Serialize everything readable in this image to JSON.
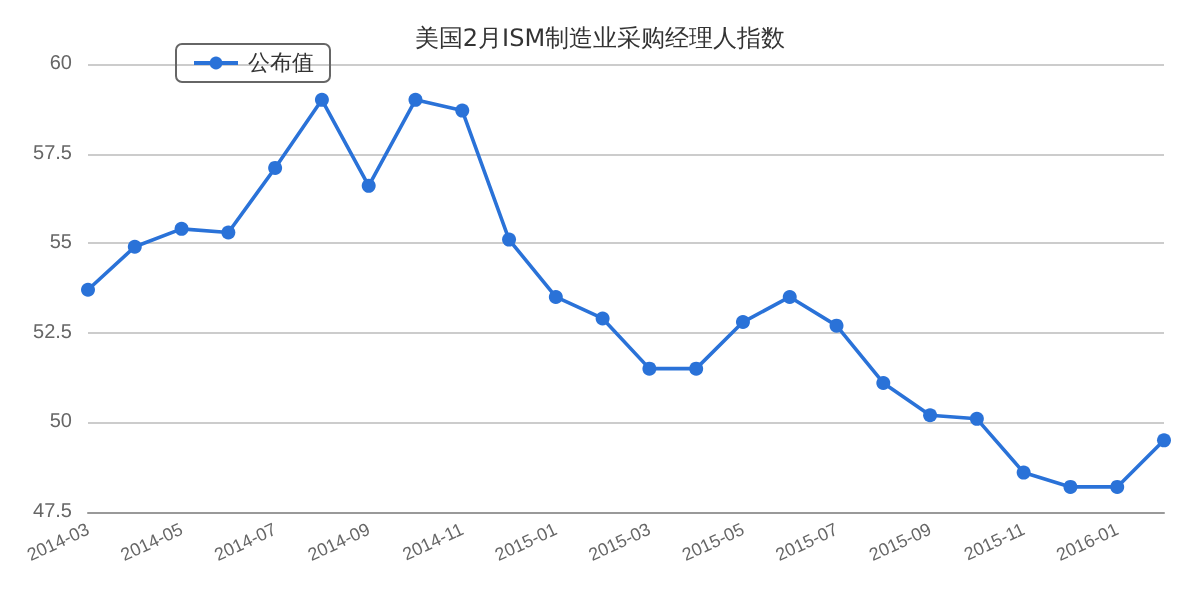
{
  "chart_data": {
    "type": "line",
    "title": "美国2月ISM制造业采购经理人指数",
    "categories": [
      "2014-03",
      null,
      "2014-05",
      null,
      "2014-07",
      null,
      "2014-09",
      null,
      "2014-11",
      null,
      "2015-01",
      null,
      "2015-03",
      null,
      "2015-05",
      null,
      "2015-07",
      null,
      "2015-09",
      null,
      "2015-11",
      null,
      "2016-01",
      null
    ],
    "series": [
      {
        "name": "公布值",
        "color": "#2a72d8",
        "values": [
          53.7,
          54.9,
          55.4,
          55.3,
          57.1,
          59.0,
          56.6,
          59.0,
          58.7,
          55.1,
          53.5,
          52.9,
          51.5,
          51.5,
          52.8,
          53.5,
          52.7,
          51.1,
          50.2,
          50.1,
          48.6,
          48.2,
          48.2,
          49.5
        ]
      }
    ],
    "ylim": [
      47.5,
      60
    ],
    "yticks": [
      47.5,
      50,
      52.5,
      55,
      57.5,
      60
    ],
    "grid": "y",
    "legend": "top left",
    "marker": "circle",
    "line_style": "solid"
  }
}
